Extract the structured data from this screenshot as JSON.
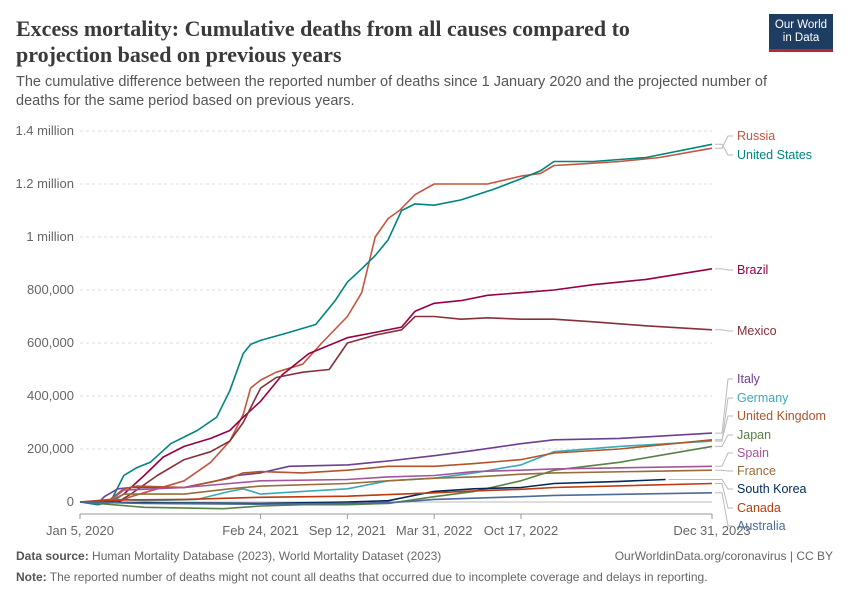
{
  "header": {
    "title": "Excess mortality: Cumulative deaths from all causes compared to projection based on previous years",
    "subtitle": "The cumulative difference between the reported number of deaths since 1 January 2020 and the projected number of deaths for the same period based on previous years.",
    "logo_line1": "Our World",
    "logo_line2": "in Data"
  },
  "footer": {
    "source_label": "Data source:",
    "source_text": "Human Mortality Database (2023), World Mortality Dataset (2023)",
    "url_text": "OurWorldinData.org/coronavirus | CC BY",
    "note_label": "Note:",
    "note_text": "The reported number of deaths might not count all deaths that occurred due to incomplete coverage and delays in reporting."
  },
  "colors": {
    "accent": "#1d3d63",
    "logo_red": "#c0272d"
  },
  "chart_data": {
    "type": "line",
    "title": "Excess mortality: Cumulative deaths from all causes compared to projection based on previous years",
    "x_tick_labels": [
      "Jan 5, 2020",
      "Feb 24, 2021",
      "Sep 12, 2021",
      "Mar 31, 2022",
      "Oct 17, 2022",
      "Dec 31, 2023"
    ],
    "x_ticks": [
      "2020-01-05",
      "2021-02-24",
      "2021-09-12",
      "2022-03-31",
      "2022-10-17",
      "2023-12-31"
    ],
    "xlim": [
      "2020-01-05",
      "2023-12-31"
    ],
    "y_tick_labels": [
      "0",
      "200,000",
      "400,000",
      "600,000",
      "800,000",
      "1 million",
      "1.2 million",
      "1.4 million"
    ],
    "y_ticks": [
      0,
      200000,
      400000,
      600000,
      800000,
      1000000,
      1200000,
      1400000
    ],
    "ylim": [
      -30000,
      1400000
    ],
    "grid": "horizontal dashed",
    "legend": "labels at right end of lines",
    "series": [
      {
        "name": "Russia",
        "color": "#c4563f",
        "points": [
          [
            "2020-01-05",
            0
          ],
          [
            "2020-04-01",
            0
          ],
          [
            "2020-05-01",
            20000
          ],
          [
            "2020-07-01",
            50000
          ],
          [
            "2020-09-01",
            80000
          ],
          [
            "2020-11-01",
            150000
          ],
          [
            "2020-12-15",
            230000
          ],
          [
            "2021-01-15",
            330000
          ],
          [
            "2021-02-01",
            430000
          ],
          [
            "2021-02-24",
            460000
          ],
          [
            "2021-04-01",
            490000
          ],
          [
            "2021-06-01",
            520000
          ],
          [
            "2021-07-15",
            600000
          ],
          [
            "2021-09-12",
            700000
          ],
          [
            "2021-10-15",
            790000
          ],
          [
            "2021-11-15",
            1000000
          ],
          [
            "2021-12-15",
            1070000
          ],
          [
            "2022-01-10",
            1100000
          ],
          [
            "2022-02-15",
            1160000
          ],
          [
            "2022-03-31",
            1200000
          ],
          [
            "2022-06-01",
            1200000
          ],
          [
            "2022-08-01",
            1200000
          ],
          [
            "2022-10-17",
            1230000
          ],
          [
            "2022-12-01",
            1240000
          ],
          [
            "2023-01-01",
            1270000
          ],
          [
            "2023-03-01",
            1275000
          ],
          [
            "2023-06-01",
            1285000
          ],
          [
            "2023-09-01",
            1300000
          ],
          [
            "2023-12-31",
            1335000
          ]
        ]
      },
      {
        "name": "United States",
        "color": "#00847e",
        "points": [
          [
            "2020-01-05",
            0
          ],
          [
            "2020-02-15",
            -10000
          ],
          [
            "2020-03-15",
            0
          ],
          [
            "2020-04-15",
            100000
          ],
          [
            "2020-05-15",
            130000
          ],
          [
            "2020-06-15",
            150000
          ],
          [
            "2020-08-01",
            220000
          ],
          [
            "2020-10-01",
            270000
          ],
          [
            "2020-11-15",
            320000
          ],
          [
            "2020-12-15",
            420000
          ],
          [
            "2021-01-15",
            560000
          ],
          [
            "2021-02-01",
            595000
          ],
          [
            "2021-02-24",
            610000
          ],
          [
            "2021-05-01",
            640000
          ],
          [
            "2021-07-01",
            670000
          ],
          [
            "2021-08-15",
            760000
          ],
          [
            "2021-09-12",
            830000
          ],
          [
            "2021-10-15",
            880000
          ],
          [
            "2021-11-15",
            930000
          ],
          [
            "2021-12-15",
            990000
          ],
          [
            "2022-01-15",
            1100000
          ],
          [
            "2022-02-15",
            1125000
          ],
          [
            "2022-03-31",
            1120000
          ],
          [
            "2022-06-01",
            1140000
          ],
          [
            "2022-08-15",
            1180000
          ],
          [
            "2022-10-17",
            1220000
          ],
          [
            "2022-12-01",
            1250000
          ],
          [
            "2023-01-01",
            1285000
          ],
          [
            "2023-04-01",
            1285000
          ],
          [
            "2023-08-01",
            1300000
          ],
          [
            "2023-12-31",
            1350000
          ]
        ]
      },
      {
        "name": "Brazil",
        "color": "#970046",
        "points": [
          [
            "2020-01-05",
            0
          ],
          [
            "2020-03-15",
            0
          ],
          [
            "2020-04-15",
            30000
          ],
          [
            "2020-06-01",
            100000
          ],
          [
            "2020-07-15",
            170000
          ],
          [
            "2020-09-01",
            210000
          ],
          [
            "2020-11-01",
            240000
          ],
          [
            "2020-12-15",
            270000
          ],
          [
            "2021-01-15",
            320000
          ],
          [
            "2021-02-24",
            380000
          ],
          [
            "2021-04-15",
            480000
          ],
          [
            "2021-06-15",
            560000
          ],
          [
            "2021-09-12",
            620000
          ],
          [
            "2021-11-15",
            640000
          ],
          [
            "2022-01-15",
            660000
          ],
          [
            "2022-02-15",
            720000
          ],
          [
            "2022-03-31",
            750000
          ],
          [
            "2022-06-01",
            760000
          ],
          [
            "2022-08-01",
            780000
          ],
          [
            "2022-10-17",
            790000
          ],
          [
            "2023-01-01",
            800000
          ],
          [
            "2023-04-01",
            820000
          ],
          [
            "2023-08-01",
            840000
          ],
          [
            "2023-12-31",
            880000
          ]
        ]
      },
      {
        "name": "Mexico",
        "color": "#883039",
        "points": [
          [
            "2020-01-05",
            0
          ],
          [
            "2020-04-01",
            0
          ],
          [
            "2020-05-01",
            30000
          ],
          [
            "2020-07-01",
            100000
          ],
          [
            "2020-09-01",
            160000
          ],
          [
            "2020-11-01",
            190000
          ],
          [
            "2020-12-15",
            230000
          ],
          [
            "2021-01-15",
            300000
          ],
          [
            "2021-02-24",
            430000
          ],
          [
            "2021-04-01",
            470000
          ],
          [
            "2021-06-01",
            490000
          ],
          [
            "2021-08-01",
            500000
          ],
          [
            "2021-09-12",
            600000
          ],
          [
            "2021-11-15",
            630000
          ],
          [
            "2022-01-15",
            650000
          ],
          [
            "2022-02-15",
            700000
          ],
          [
            "2022-03-31",
            700000
          ],
          [
            "2022-06-01",
            690000
          ],
          [
            "2022-08-01",
            695000
          ],
          [
            "2022-10-17",
            690000
          ],
          [
            "2023-01-01",
            690000
          ],
          [
            "2023-04-01",
            680000
          ],
          [
            "2023-08-01",
            665000
          ],
          [
            "2023-12-31",
            650000
          ]
        ]
      },
      {
        "name": "Italy",
        "color": "#6d3e91",
        "points": [
          [
            "2020-01-05",
            0
          ],
          [
            "2020-02-15",
            -5000
          ],
          [
            "2020-03-01",
            20000
          ],
          [
            "2020-04-01",
            50000
          ],
          [
            "2020-05-01",
            55000
          ],
          [
            "2020-09-01",
            55000
          ],
          [
            "2020-11-15",
            80000
          ],
          [
            "2020-12-31",
            100000
          ],
          [
            "2021-02-24",
            110000
          ],
          [
            "2021-05-01",
            135000
          ],
          [
            "2021-09-12",
            140000
          ],
          [
            "2021-12-15",
            155000
          ],
          [
            "2022-03-31",
            175000
          ],
          [
            "2022-07-01",
            195000
          ],
          [
            "2022-10-17",
            220000
          ],
          [
            "2023-01-01",
            235000
          ],
          [
            "2023-06-01",
            240000
          ],
          [
            "2023-12-31",
            260000
          ]
        ]
      },
      {
        "name": "Germany",
        "color": "#38aaba",
        "points": [
          [
            "2020-01-05",
            0
          ],
          [
            "2020-04-01",
            10000
          ],
          [
            "2020-06-01",
            5000
          ],
          [
            "2020-10-01",
            10000
          ],
          [
            "2020-12-15",
            40000
          ],
          [
            "2021-01-15",
            50000
          ],
          [
            "2021-02-24",
            30000
          ],
          [
            "2021-06-01",
            40000
          ],
          [
            "2021-09-12",
            50000
          ],
          [
            "2021-12-15",
            80000
          ],
          [
            "2022-03-31",
            90000
          ],
          [
            "2022-07-01",
            110000
          ],
          [
            "2022-10-17",
            140000
          ],
          [
            "2023-01-01",
            190000
          ],
          [
            "2023-06-01",
            210000
          ],
          [
            "2023-12-31",
            230000
          ]
        ]
      },
      {
        "name": "United Kingdom",
        "color": "#b1542a",
        "points": [
          [
            "2020-01-05",
            0
          ],
          [
            "2020-03-15",
            10000
          ],
          [
            "2020-04-15",
            50000
          ],
          [
            "2020-05-15",
            60000
          ],
          [
            "2020-09-01",
            55000
          ],
          [
            "2020-12-15",
            90000
          ],
          [
            "2021-01-15",
            110000
          ],
          [
            "2021-02-24",
            115000
          ],
          [
            "2021-06-01",
            110000
          ],
          [
            "2021-09-12",
            120000
          ],
          [
            "2021-12-15",
            135000
          ],
          [
            "2022-03-31",
            135000
          ],
          [
            "2022-07-01",
            145000
          ],
          [
            "2022-10-17",
            160000
          ],
          [
            "2023-01-01",
            185000
          ],
          [
            "2023-06-01",
            200000
          ],
          [
            "2023-12-31",
            235000
          ]
        ]
      },
      {
        "name": "Japan",
        "color": "#578145",
        "points": [
          [
            "2020-01-05",
            0
          ],
          [
            "2020-06-01",
            -20000
          ],
          [
            "2020-12-01",
            -25000
          ],
          [
            "2021-02-24",
            -15000
          ],
          [
            "2021-06-01",
            -10000
          ],
          [
            "2021-09-12",
            -10000
          ],
          [
            "2021-12-15",
            -5000
          ],
          [
            "2022-03-31",
            20000
          ],
          [
            "2022-07-01",
            40000
          ],
          [
            "2022-10-17",
            80000
          ],
          [
            "2023-01-01",
            120000
          ],
          [
            "2023-06-01",
            150000
          ],
          [
            "2023-12-31",
            210000
          ]
        ]
      },
      {
        "name": "Spain",
        "color": "#a2559c",
        "points": [
          [
            "2020-01-05",
            0
          ],
          [
            "2020-03-10",
            0
          ],
          [
            "2020-04-15",
            45000
          ],
          [
            "2020-06-01",
            48000
          ],
          [
            "2020-09-01",
            55000
          ],
          [
            "2020-12-15",
            70000
          ],
          [
            "2021-02-24",
            80000
          ],
          [
            "2021-09-12",
            85000
          ],
          [
            "2021-12-15",
            95000
          ],
          [
            "2022-03-31",
            100000
          ],
          [
            "2022-07-01",
            115000
          ],
          [
            "2022-10-17",
            120000
          ],
          [
            "2023-01-01",
            125000
          ],
          [
            "2023-12-31",
            135000
          ]
        ]
      },
      {
        "name": "France",
        "color": "#996d39",
        "points": [
          [
            "2020-01-05",
            0
          ],
          [
            "2020-03-15",
            5000
          ],
          [
            "2020-04-15",
            30000
          ],
          [
            "2020-09-01",
            30000
          ],
          [
            "2020-12-15",
            50000
          ],
          [
            "2021-02-24",
            60000
          ],
          [
            "2021-09-12",
            70000
          ],
          [
            "2021-12-15",
            80000
          ],
          [
            "2022-03-31",
            90000
          ],
          [
            "2022-07-01",
            95000
          ],
          [
            "2022-10-17",
            105000
          ],
          [
            "2023-01-01",
            110000
          ],
          [
            "2023-12-31",
            120000
          ]
        ]
      },
      {
        "name": "South Korea",
        "color": "#00295b",
        "points": [
          [
            "2020-01-05",
            0
          ],
          [
            "2020-06-01",
            -3000
          ],
          [
            "2021-02-24",
            -5000
          ],
          [
            "2021-09-12",
            0
          ],
          [
            "2021-12-15",
            5000
          ],
          [
            "2022-03-31",
            40000
          ],
          [
            "2022-07-01",
            50000
          ],
          [
            "2022-10-17",
            55000
          ],
          [
            "2023-01-01",
            70000
          ],
          [
            "2023-06-01",
            78000
          ],
          [
            "2023-09-15",
            85000
          ]
        ]
      },
      {
        "name": "Canada",
        "color": "#bc3a0b",
        "points": [
          [
            "2020-01-05",
            0
          ],
          [
            "2020-04-15",
            8000
          ],
          [
            "2020-09-01",
            10000
          ],
          [
            "2021-02-24",
            18000
          ],
          [
            "2021-09-12",
            22000
          ],
          [
            "2021-12-15",
            28000
          ],
          [
            "2022-03-31",
            35000
          ],
          [
            "2022-07-01",
            42000
          ],
          [
            "2022-10-17",
            48000
          ],
          [
            "2023-01-01",
            55000
          ],
          [
            "2023-12-31",
            70000
          ]
        ]
      },
      {
        "name": "Australia",
        "color": "#4c6a9c",
        "points": [
          [
            "2020-01-05",
            0
          ],
          [
            "2020-06-01",
            -5000
          ],
          [
            "2021-02-24",
            -8000
          ],
          [
            "2021-09-12",
            -5000
          ],
          [
            "2022-01-15",
            0
          ],
          [
            "2022-03-31",
            10000
          ],
          [
            "2022-10-17",
            20000
          ],
          [
            "2023-01-01",
            25000
          ],
          [
            "2023-12-31",
            35000
          ]
        ]
      }
    ]
  }
}
